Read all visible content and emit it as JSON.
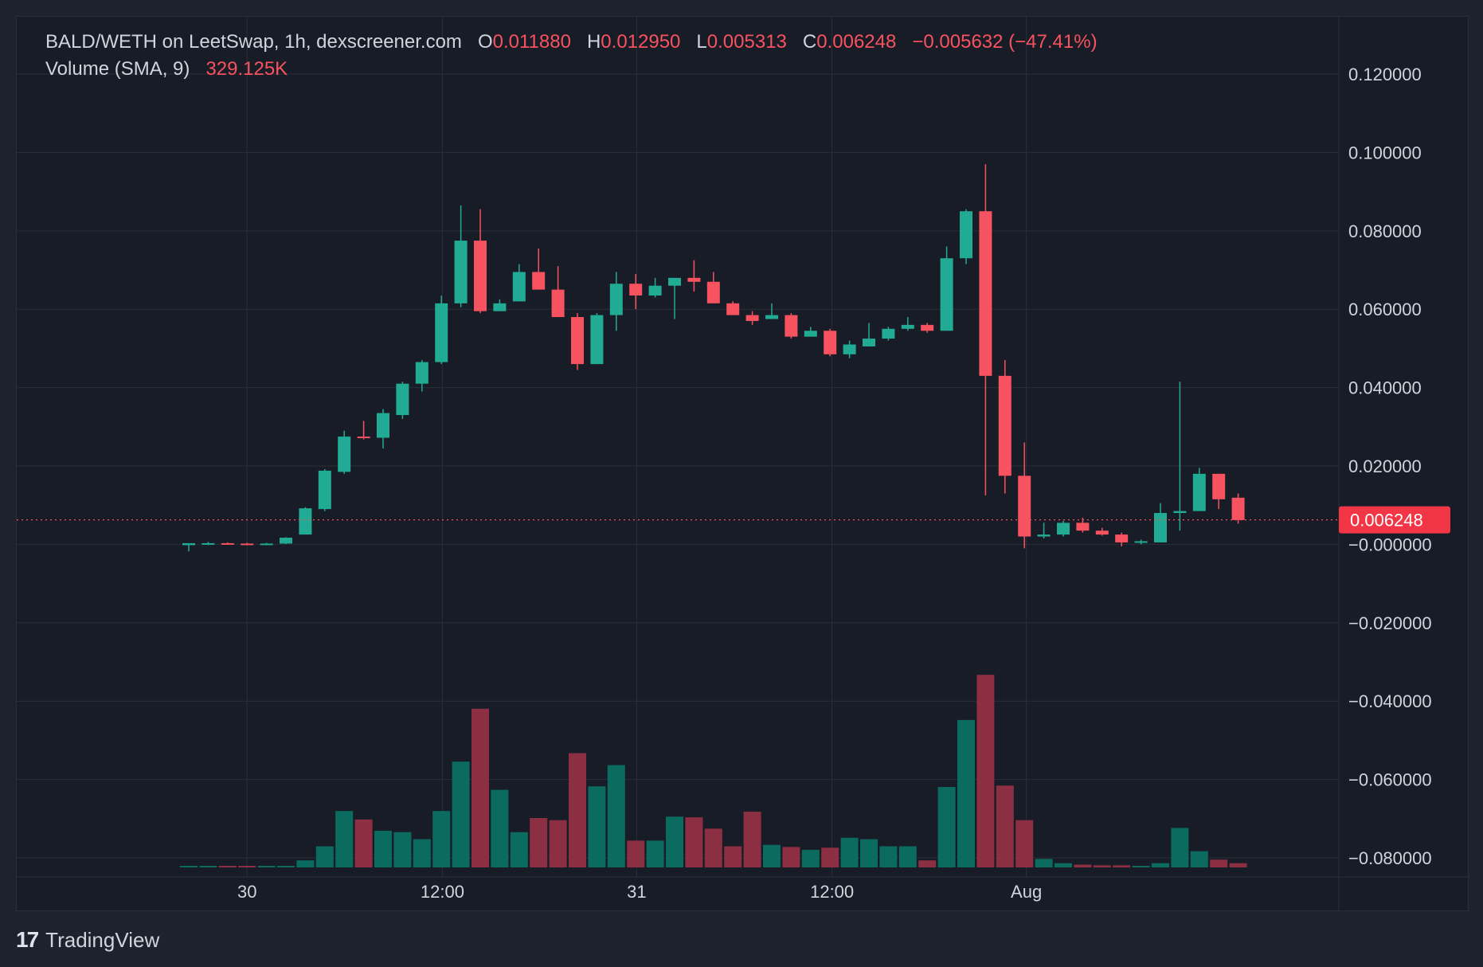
{
  "legend": {
    "symbol": "BALD/WETH on LeetSwap, 1h, dexscreener.com",
    "o_label": "O",
    "o_value": "0.011880",
    "h_label": "H",
    "h_value": "0.012950",
    "l_label": "L",
    "l_value": "0.005313",
    "c_label": "C",
    "c_value": "0.006248",
    "change": "−0.005632 (−47.41%)",
    "volume_label": "Volume (SMA, 9)",
    "volume_value": "329.125K"
  },
  "brand": {
    "logo": "17",
    "name": "TradingView"
  },
  "colors": {
    "up": "#22ab94",
    "down": "#f7525f",
    "up_vol": "#0b6b5e",
    "down_vol": "#8c2f42",
    "background": "#181c27",
    "grid": "#2a2e39",
    "text": "#d1d4dc"
  },
  "chart_data": {
    "type": "candlestick",
    "interval": "1h",
    "x_ticks": [
      "30",
      "12:00",
      "31",
      "12:00",
      "Aug"
    ],
    "y_ticks": [
      "0.120000",
      "0.100000",
      "0.080000",
      "0.060000",
      "0.040000",
      "0.020000",
      "−0.000000",
      "−0.020000",
      "−0.040000",
      "−0.060000",
      "−0.080000"
    ],
    "ylim": [
      -0.08,
      0.12
    ],
    "last_price": "0.006248",
    "candles": [
      {
        "o": -0.0002,
        "h": 0.0003,
        "l": -0.0018,
        "c": 0.0003
      },
      {
        "o": 0.0002,
        "h": 0.0006,
        "l": -0.0002,
        "c": 0.0003
      },
      {
        "o": 0.0003,
        "h": 0.0005,
        "l": 0.0,
        "c": 0.0002
      },
      {
        "o": 0.0002,
        "h": 0.0004,
        "l": -0.0001,
        "c": 0.0001
      },
      {
        "o": 0.0002,
        "h": 0.0004,
        "l": -0.0001,
        "c": 0.0002
      },
      {
        "o": 0.0002,
        "h": 0.0018,
        "l": 0.0001,
        "c": 0.0017
      },
      {
        "o": 0.0025,
        "h": 0.0095,
        "l": 0.0025,
        "c": 0.0092
      },
      {
        "o": 0.009,
        "h": 0.0192,
        "l": 0.0085,
        "c": 0.0188
      },
      {
        "o": 0.0185,
        "h": 0.029,
        "l": 0.018,
        "c": 0.0275
      },
      {
        "o": 0.0275,
        "h": 0.0315,
        "l": 0.0268,
        "c": 0.0272
      },
      {
        "o": 0.0272,
        "h": 0.0345,
        "l": 0.0245,
        "c": 0.0335
      },
      {
        "o": 0.033,
        "h": 0.0415,
        "l": 0.032,
        "c": 0.041
      },
      {
        "o": 0.041,
        "h": 0.047,
        "l": 0.039,
        "c": 0.0465
      },
      {
        "o": 0.0465,
        "h": 0.0635,
        "l": 0.046,
        "c": 0.0615
      },
      {
        "o": 0.0615,
        "h": 0.0865,
        "l": 0.0605,
        "c": 0.0775
      },
      {
        "o": 0.0775,
        "h": 0.0855,
        "l": 0.059,
        "c": 0.0595
      },
      {
        "o": 0.0595,
        "h": 0.0625,
        "l": 0.0595,
        "c": 0.0615
      },
      {
        "o": 0.062,
        "h": 0.0715,
        "l": 0.062,
        "c": 0.0695
      },
      {
        "o": 0.0695,
        "h": 0.0755,
        "l": 0.065,
        "c": 0.065
      },
      {
        "o": 0.065,
        "h": 0.071,
        "l": 0.058,
        "c": 0.058
      },
      {
        "o": 0.058,
        "h": 0.059,
        "l": 0.0445,
        "c": 0.046
      },
      {
        "o": 0.046,
        "h": 0.059,
        "l": 0.046,
        "c": 0.0585
      },
      {
        "o": 0.0585,
        "h": 0.0695,
        "l": 0.0545,
        "c": 0.0665
      },
      {
        "o": 0.0665,
        "h": 0.069,
        "l": 0.06,
        "c": 0.0635
      },
      {
        "o": 0.0635,
        "h": 0.068,
        "l": 0.063,
        "c": 0.066
      },
      {
        "o": 0.066,
        "h": 0.068,
        "l": 0.0575,
        "c": 0.068
      },
      {
        "o": 0.068,
        "h": 0.0725,
        "l": 0.0645,
        "c": 0.067
      },
      {
        "o": 0.067,
        "h": 0.0695,
        "l": 0.0615,
        "c": 0.0615
      },
      {
        "o": 0.0615,
        "h": 0.062,
        "l": 0.0585,
        "c": 0.0585
      },
      {
        "o": 0.0585,
        "h": 0.0595,
        "l": 0.056,
        "c": 0.057
      },
      {
        "o": 0.0575,
        "h": 0.0615,
        "l": 0.0575,
        "c": 0.0585
      },
      {
        "o": 0.0585,
        "h": 0.059,
        "l": 0.0525,
        "c": 0.053
      },
      {
        "o": 0.053,
        "h": 0.0555,
        "l": 0.053,
        "c": 0.0545
      },
      {
        "o": 0.0545,
        "h": 0.055,
        "l": 0.048,
        "c": 0.0485
      },
      {
        "o": 0.0485,
        "h": 0.052,
        "l": 0.0475,
        "c": 0.051
      },
      {
        "o": 0.0505,
        "h": 0.0565,
        "l": 0.0505,
        "c": 0.0525
      },
      {
        "o": 0.0525,
        "h": 0.0555,
        "l": 0.052,
        "c": 0.055
      },
      {
        "o": 0.055,
        "h": 0.058,
        "l": 0.0545,
        "c": 0.056
      },
      {
        "o": 0.056,
        "h": 0.0565,
        "l": 0.054,
        "c": 0.0545
      },
      {
        "o": 0.0545,
        "h": 0.076,
        "l": 0.0545,
        "c": 0.073
      },
      {
        "o": 0.073,
        "h": 0.0855,
        "l": 0.0715,
        "c": 0.085
      },
      {
        "o": 0.085,
        "h": 0.097,
        "l": 0.0125,
        "c": 0.043
      },
      {
        "o": 0.043,
        "h": 0.047,
        "l": 0.013,
        "c": 0.0175
      },
      {
        "o": 0.0175,
        "h": 0.026,
        "l": -0.001,
        "c": 0.002
      },
      {
        "o": 0.002,
        "h": 0.0055,
        "l": 0.0015,
        "c": 0.0025
      },
      {
        "o": 0.0025,
        "h": 0.006,
        "l": 0.002,
        "c": 0.0055
      },
      {
        "o": 0.0055,
        "h": 0.0068,
        "l": 0.003,
        "c": 0.0035
      },
      {
        "o": 0.0035,
        "h": 0.0042,
        "l": 0.0022,
        "c": 0.0025
      },
      {
        "o": 0.0025,
        "h": 0.003,
        "l": -0.0005,
        "c": 0.0005
      },
      {
        "o": 0.0005,
        "h": 0.0012,
        "l": 0.0,
        "c": 0.0008
      },
      {
        "o": 0.0005,
        "h": 0.0105,
        "l": 0.0005,
        "c": 0.008
      },
      {
        "o": 0.008,
        "h": 0.0415,
        "l": 0.0035,
        "c": 0.0085
      },
      {
        "o": 0.0085,
        "h": 0.0195,
        "l": 0.0085,
        "c": 0.018
      },
      {
        "o": 0.018,
        "h": 0.018,
        "l": 0.009,
        "c": 0.0115
      },
      {
        "o": 0.0119,
        "h": 0.013,
        "l": 0.0053,
        "c": 0.0062
      }
    ],
    "volume": [
      2,
      2,
      2,
      2,
      2,
      2,
      10,
      30,
      80,
      68,
      52,
      50,
      40,
      80,
      150,
      225,
      110,
      50,
      70,
      67,
      162,
      115,
      145,
      38,
      38,
      72,
      71,
      55,
      30,
      79,
      32,
      29,
      25,
      28,
      42,
      40,
      30,
      30,
      10,
      114,
      209,
      273,
      116,
      67,
      12,
      6,
      4,
      3,
      3,
      2,
      6,
      56,
      23,
      11,
      6
    ],
    "volume_max": 280
  }
}
